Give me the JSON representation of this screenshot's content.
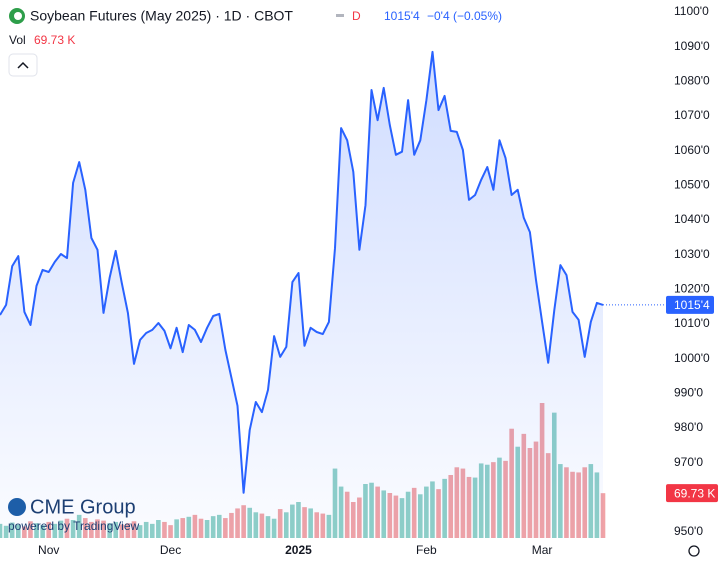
{
  "chart_data": {
    "type": "line",
    "title": "Soybean Futures (May 2025) · 1D · CBOT",
    "interval_badge": "D",
    "last_label": "1015'4",
    "change_label": "−0'4 (−0.05%)",
    "volume_title": "Vol",
    "volume_last_label": "69.73 K",
    "brand": "CME Group",
    "powered_by": "powered by TradingView",
    "color": "#2962ff",
    "up_color": "#8fd0c7",
    "down_color": "#f1a3a6",
    "categories": [
      null,
      null,
      null,
      null,
      null,
      null,
      null,
      null,
      "Nov",
      null,
      null,
      null,
      null,
      null,
      null,
      null,
      null,
      null,
      null,
      null,
      null,
      null,
      null,
      null,
      null,
      null,
      null,
      null,
      "Dec",
      null,
      null,
      null,
      null,
      null,
      null,
      null,
      null,
      null,
      null,
      null,
      null,
      null,
      null,
      null,
      null,
      null,
      null,
      null,
      null,
      "2025",
      null,
      null,
      null,
      null,
      null,
      null,
      null,
      null,
      null,
      null,
      null,
      null,
      null,
      null,
      null,
      null,
      null,
      null,
      null,
      null,
      "Feb",
      null,
      null,
      null,
      null,
      null,
      null,
      null,
      null,
      null,
      null,
      null,
      null,
      null,
      null,
      null,
      null,
      null,
      null,
      "Mar",
      null,
      null,
      null,
      null,
      null,
      null,
      null,
      null,
      null,
      null
    ],
    "values": [
      1012.6,
      1015.5,
      1026.7,
      1029.6,
      1013.5,
      1009.7,
      1021,
      1025.6,
      1025,
      1027.9,
      1030.2,
      1029,
      1050.7,
      1056.7,
      1048.7,
      1034.8,
      1031.4,
      1013.2,
      1023.3,
      1031.1,
      1021.8,
      1013.2,
      998.5,
      1005.4,
      1007.4,
      1008.3,
      1010.3,
      1008,
      1003,
      1008.9,
      1001.9,
      1009.7,
      1008.3,
      1004.8,
      1008.9,
      1012.3,
      1012.9,
      1002.5,
      994.4,
      986.4,
      961.3,
      979.4,
      987.5,
      984.6,
      991,
      1006.5,
      1000.5,
      1003.4,
      1022.1,
      1024.7,
      1003.7,
      1008.9,
      1007.7,
      1007.1,
      1010.6,
      1031.9,
      1066.5,
      1063,
      1053.9,
      1031.4,
      1044.3,
      1077.5,
      1068.8,
      1078.1,
      1067.4,
      1058.8,
      1059.7,
      1074.6,
      1058.8,
      1063,
      1074.6,
      1088.5,
      1071.7,
      1075.8,
      1065.7,
      1065.4,
      1060.2,
      1045.8,
      1047.2,
      1051.6,
      1055.3,
      1048.7,
      1063,
      1057.9,
      1047.2,
      1048.7,
      1040.6,
      1036.5,
      1022.7,
      1010.6,
      998.8,
      1014,
      1027,
      1024.1,
      1013.5,
      1011.2,
      1000.5,
      1010.6,
      1016.1,
      1015.5
    ],
    "volume": [
      22,
      19,
      24,
      21,
      18,
      26,
      23,
      20,
      25,
      22,
      27,
      30,
      28,
      36,
      31,
      25,
      29,
      27,
      23,
      25,
      21,
      23,
      26,
      20,
      25,
      22,
      28,
      25,
      20,
      29,
      31,
      33,
      36,
      30,
      28,
      34,
      36,
      31,
      39,
      46,
      51,
      47,
      40,
      38,
      34,
      30,
      45,
      40,
      52,
      56,
      48,
      46,
      40,
      38,
      36,
      108,
      80,
      72,
      56,
      63,
      84,
      86,
      80,
      74,
      70,
      66,
      62,
      72,
      78,
      68,
      80,
      88,
      76,
      92,
      98,
      110,
      108,
      95,
      94,
      116,
      114,
      118,
      125,
      120,
      170,
      142,
      162,
      140,
      150,
      210,
      132,
      195,
      115,
      110,
      103,
      102,
      110,
      115,
      102,
      69.73
    ],
    "ylim": [
      950,
      1100
    ],
    "yticks": [
      {
        "value": 1100,
        "label": "1100'0"
      },
      {
        "value": 1090,
        "label": "1090'0"
      },
      {
        "value": 1080,
        "label": "1080'0"
      },
      {
        "value": 1070,
        "label": "1070'0"
      },
      {
        "value": 1060,
        "label": "1060'0"
      },
      {
        "value": 1050,
        "label": "1050'0"
      },
      {
        "value": 1040,
        "label": "1040'0"
      },
      {
        "value": 1030,
        "label": "1030'0"
      },
      {
        "value": 1020,
        "label": "1020'0"
      },
      {
        "value": 1010,
        "label": "1010'0"
      },
      {
        "value": 1000,
        "label": "1000'0"
      },
      {
        "value": 990,
        "label": "990'0"
      },
      {
        "value": 980,
        "label": "980'0"
      },
      {
        "value": 970,
        "label": "970'0"
      },
      {
        "value": 960,
        "label": "960'0"
      },
      {
        "value": 950,
        "label": "950'0"
      }
    ],
    "grid": false
  }
}
